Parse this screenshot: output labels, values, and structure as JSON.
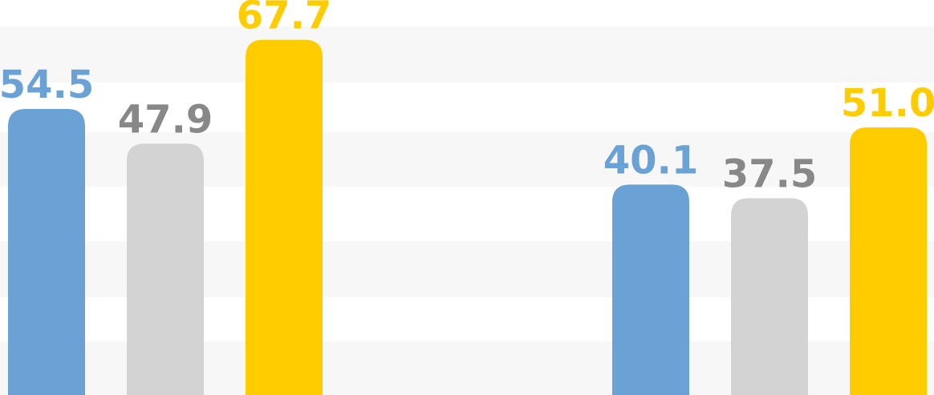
{
  "chart_data": {
    "type": "bar",
    "title": "",
    "xlabel": "",
    "ylabel": "",
    "groups": [
      {
        "values": [
          54.5,
          47.9,
          67.7
        ],
        "labels": [
          "54.5",
          "47.9",
          "67.7"
        ]
      },
      {
        "values": [
          40.1,
          37.5,
          51.0
        ],
        "labels": [
          "40.1",
          "37.5",
          "51.0"
        ]
      }
    ],
    "series_colors": [
      "#6aa2d6",
      "#d3d3d3",
      "#ffcc00"
    ],
    "label_colors": [
      "#6aa2d6",
      "#888888",
      "#ffcc00"
    ],
    "ylim": [
      0,
      72
    ],
    "grid": "alternating bands"
  }
}
